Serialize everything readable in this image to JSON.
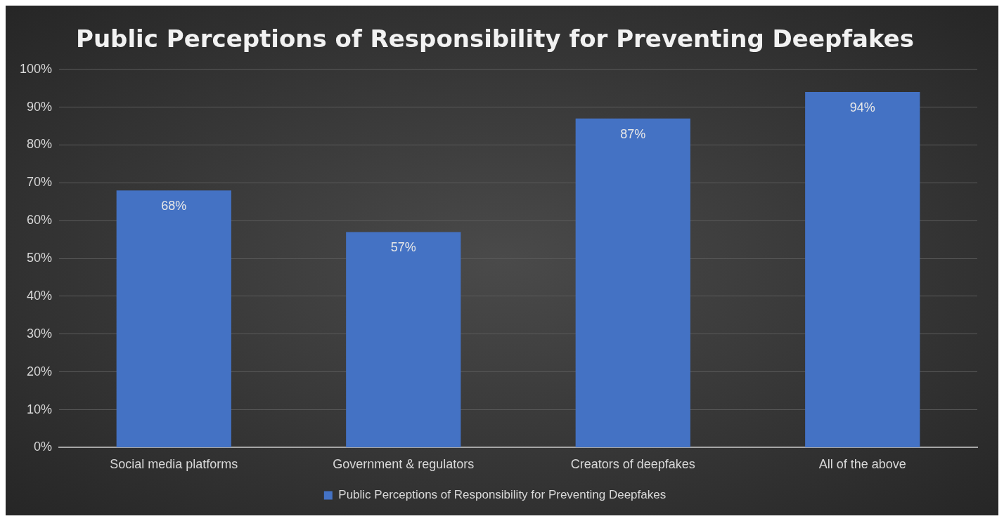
{
  "chart_data": {
    "type": "bar",
    "title": "Public Perceptions of Responsibility for Preventing Deepfakes",
    "categories": [
      "Social media platforms",
      "Government & regulators",
      "Creators of deepfakes",
      "All of the above"
    ],
    "series": [
      {
        "name": "Public Perceptions of Responsibility for Preventing Deepfakes",
        "color": "#4472c4",
        "values": [
          68,
          57,
          87,
          94
        ],
        "value_labels": [
          "68%",
          "57%",
          "87%",
          "94%"
        ]
      }
    ],
    "ylim": [
      0,
      100
    ],
    "yticks": [
      {
        "value": 0,
        "label": "0%"
      },
      {
        "value": 10,
        "label": "10%"
      },
      {
        "value": 20,
        "label": "20%"
      },
      {
        "value": 30,
        "label": "30%"
      },
      {
        "value": 40,
        "label": "40%"
      },
      {
        "value": 50,
        "label": "50%"
      },
      {
        "value": 60,
        "label": "60%"
      },
      {
        "value": 70,
        "label": "70%"
      },
      {
        "value": 80,
        "label": "80%"
      },
      {
        "value": 90,
        "label": "90%"
      },
      {
        "value": 100,
        "label": "100%"
      }
    ],
    "grid": "y",
    "legend": "bottom"
  }
}
